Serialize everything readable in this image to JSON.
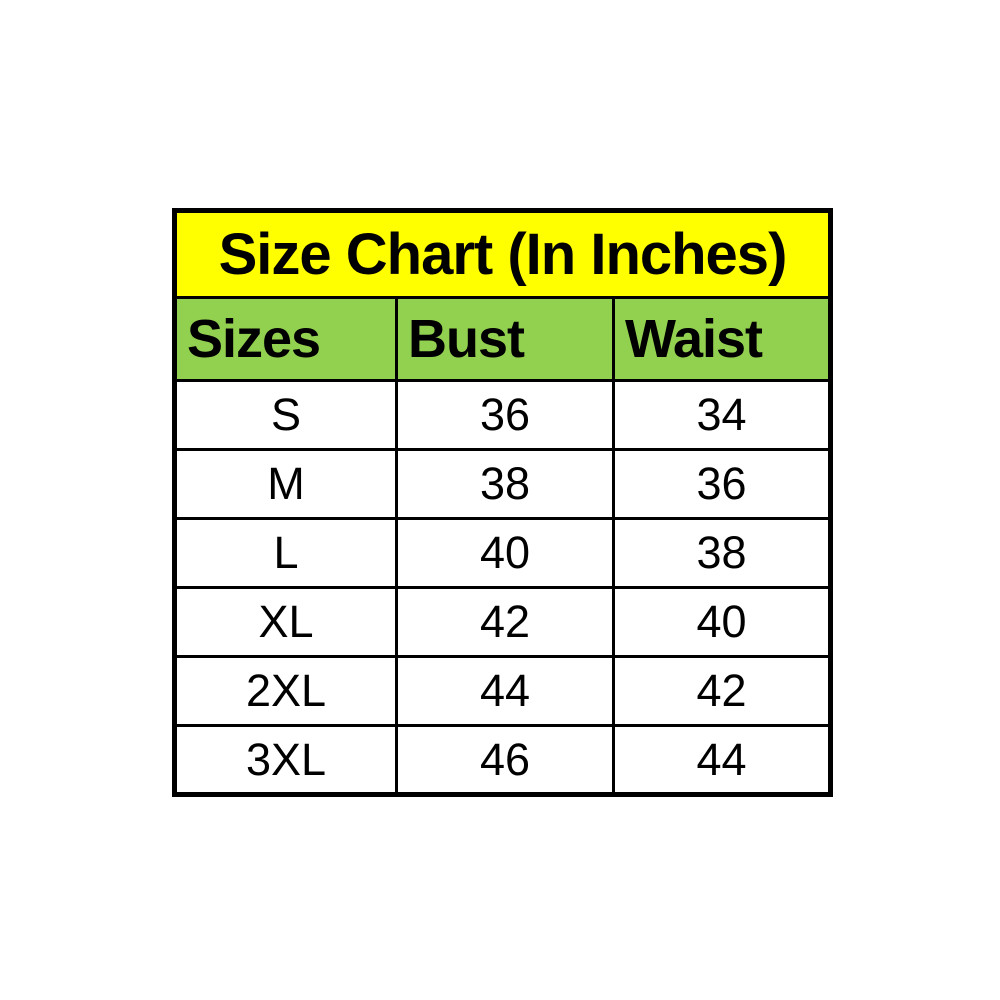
{
  "size_chart": {
    "title": "Size Chart (In Inches)",
    "columns": [
      "Sizes",
      "Bust",
      "Waist"
    ],
    "rows": [
      {
        "size": "S",
        "bust": "36",
        "waist": "34"
      },
      {
        "size": "M",
        "bust": "38",
        "waist": "36"
      },
      {
        "size": "L",
        "bust": "40",
        "waist": "38"
      },
      {
        "size": "XL",
        "bust": "42",
        "waist": "40"
      },
      {
        "size": "2XL",
        "bust": "44",
        "waist": "42"
      },
      {
        "size": "3XL",
        "bust": "46",
        "waist": "44"
      }
    ],
    "colors": {
      "title_background": "#FFFF00",
      "header_background": "#92D050",
      "border": "#000000",
      "row_background": "#FFFFFF",
      "text": "#000000"
    }
  }
}
